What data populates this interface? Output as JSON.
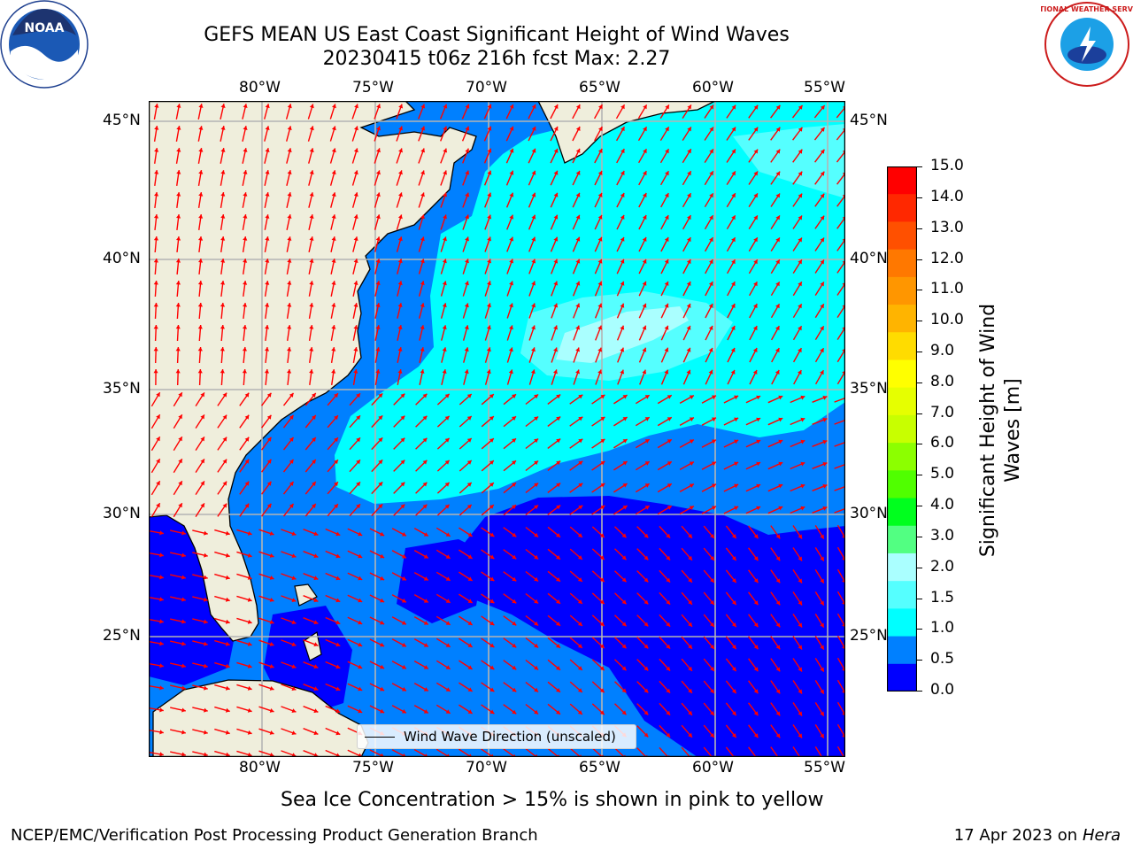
{
  "title": {
    "line1": "GEFS MEAN US East Coast Significant Height of Wind Waves",
    "line2": "20230415 t06z 216h fcst   Max: 2.27"
  },
  "map": {
    "lon_labels": [
      "80°W",
      "75°W",
      "70°W",
      "65°W",
      "60°W",
      "55°W"
    ],
    "lat_labels": [
      "45°N",
      "40°N",
      "35°N",
      "30°N",
      "25°N"
    ],
    "lon_range": [
      -85,
      -54.4
    ],
    "lat_range": [
      20.5,
      45.8
    ],
    "legend_label": "Wind Wave Direction (unscaled)",
    "arrow_color": "#ff0000",
    "land_color": "#efeedc",
    "grid": true
  },
  "colorbar": {
    "title_line1": "Significant Height of Wind",
    "title_line2": "Waves [m]",
    "ticks": [
      "15.0",
      "14.0",
      "13.0",
      "12.0",
      "11.0",
      "10.0",
      "9.0",
      "8.0",
      "7.0",
      "6.0",
      "5.0",
      "4.0",
      "3.0",
      "2.0",
      "1.5",
      "1.0",
      "0.5",
      "0.0"
    ],
    "colors": [
      "#ff0000",
      "#ff2800",
      "#ff5000",
      "#ff7800",
      "#ff9600",
      "#ffb400",
      "#ffdc00",
      "#ffff00",
      "#e6ff00",
      "#c8ff00",
      "#8cff00",
      "#50ff00",
      "#00ff1e",
      "#52ff82",
      "#aaffff",
      "#55ffff",
      "#00ffff",
      "#0080ff",
      "#0000ff"
    ]
  },
  "caption": "Sea Ice Concentration > 15% is shown in pink to yellow",
  "footer": {
    "left": "NCEP/EMC/Verification Post Processing Product Generation Branch",
    "right_date": "17 Apr 2023 on",
    "right_host": "Hera"
  },
  "logos": {
    "noaa_text": "NOAA",
    "nws_text": "NATIONAL WEATHER SERVICE"
  }
}
